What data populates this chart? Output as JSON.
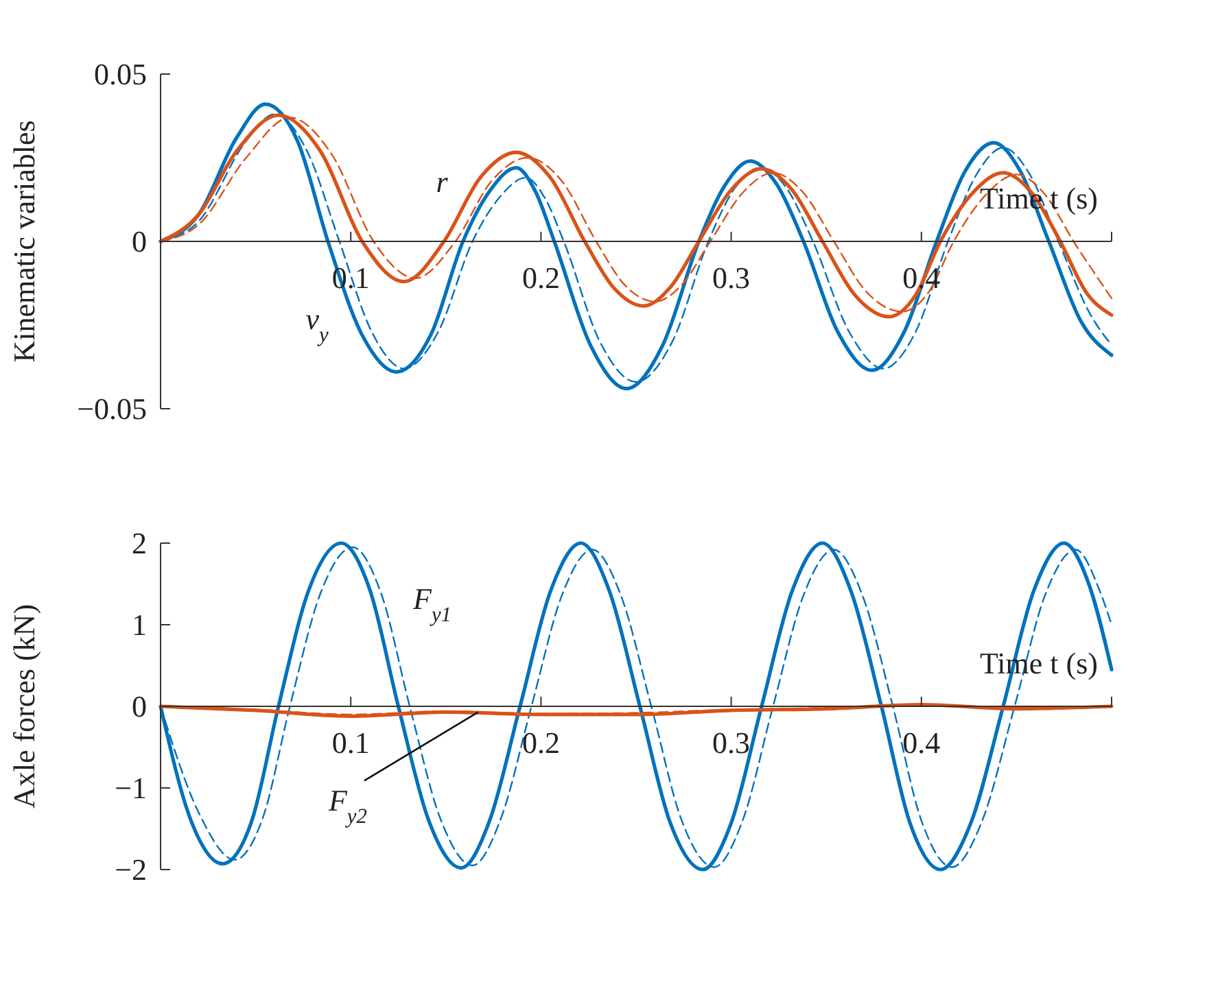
{
  "chart_data": [
    {
      "type": "line",
      "xlabel": "Time t (s)",
      "ylabel": "Kinematic variables",
      "xlim": [
        0,
        0.5
      ],
      "ylim": [
        -0.05,
        0.05
      ],
      "xticks": [
        0.1,
        0.2,
        0.3,
        0.4,
        {
          "value": 0.5,
          "label": null
        }
      ],
      "yticks": [
        {
          "value": -0.05,
          "label": "−0.05"
        },
        0,
        0.05
      ],
      "series": [
        {
          "color": "#0072bd",
          "line_style": "solid",
          "x": [
            0,
            0.02,
            0.04,
            0.055,
            0.072,
            0.088,
            0.106,
            0.124,
            0.142,
            0.159,
            0.173,
            0.187,
            0.197,
            0.207,
            0.226,
            0.245,
            0.264,
            0.283,
            0.297,
            0.31,
            0.324,
            0.338,
            0.356,
            0.374,
            0.391,
            0.408,
            0.423,
            0.438,
            0.452,
            0.467,
            0.484,
            0.5
          ],
          "values": [
            0,
            0.008,
            0.031,
            0.041,
            0.03,
            0,
            -0.028,
            -0.039,
            -0.028,
            0,
            0.015,
            0.022,
            0.015,
            0,
            -0.031,
            -0.044,
            -0.031,
            0,
            0.017,
            0.024,
            0.017,
            0,
            -0.027,
            -0.0385,
            -0.027,
            0,
            0.021,
            0.0295,
            0.021,
            0,
            -0.024,
            -0.034
          ]
        },
        {
          "color": "#0072bd",
          "line_style": "dashed",
          "x": [
            0,
            0.02,
            0.045,
            0.06,
            0.077,
            0.094,
            0.111,
            0.128,
            0.146,
            0.164,
            0.178,
            0.192,
            0.202,
            0.212,
            0.231,
            0.25,
            0.269,
            0.288,
            0.302,
            0.315,
            0.329,
            0.343,
            0.362,
            0.38,
            0.397,
            0.414,
            0.429,
            0.443,
            0.457,
            0.472,
            0.489,
            0.5
          ],
          "values": [
            0,
            0.006,
            0.03,
            0.038,
            0.027,
            0,
            -0.027,
            -0.038,
            -0.027,
            0,
            0.013,
            0.019,
            0.013,
            0,
            -0.03,
            -0.042,
            -0.03,
            0,
            0.016,
            0.022,
            0.016,
            0,
            -0.027,
            -0.038,
            -0.027,
            0,
            0.02,
            0.028,
            0.02,
            0,
            -0.022,
            -0.031
          ]
        },
        {
          "color": "#d95319",
          "line_style": "solid",
          "x": [
            0,
            0.02,
            0.04,
            0.062,
            0.084,
            0.106,
            0.128,
            0.149,
            0.168,
            0.187,
            0.205,
            0.223,
            0.238,
            0.254,
            0.268,
            0.283,
            0.3,
            0.316,
            0.332,
            0.348,
            0.365,
            0.383,
            0.397,
            0.41,
            0.427,
            0.443,
            0.458,
            0.473,
            0.487,
            0.5
          ],
          "values": [
            0,
            0.008,
            0.027,
            0.0377,
            0.027,
            0,
            -0.012,
            0,
            0.019,
            0.0266,
            0.019,
            0,
            -0.0137,
            -0.0193,
            -0.0137,
            0,
            0.0154,
            0.0217,
            0.0154,
            0,
            -0.016,
            -0.0225,
            -0.016,
            0,
            0.0145,
            0.0205,
            0.0145,
            0,
            -0.0155,
            -0.022
          ]
        },
        {
          "color": "#d95319",
          "line_style": "dashed",
          "x": [
            0,
            0.02,
            0.045,
            0.068,
            0.09,
            0.112,
            0.134,
            0.155,
            0.174,
            0.193,
            0.211,
            0.229,
            0.244,
            0.26,
            0.274,
            0.289,
            0.306,
            0.322,
            0.338,
            0.354,
            0.371,
            0.39,
            0.404,
            0.417,
            0.434,
            0.45,
            0.465,
            0.48,
            0.494,
            0.5
          ],
          "values": [
            0,
            0.005,
            0.025,
            0.037,
            0.026,
            0,
            -0.011,
            0,
            0.018,
            0.025,
            0.018,
            0,
            -0.013,
            -0.018,
            -0.013,
            0,
            0.0145,
            0.0205,
            0.0145,
            0,
            -0.015,
            -0.021,
            -0.015,
            0,
            0.014,
            0.02,
            0.014,
            0,
            -0.012,
            -0.017
          ]
        }
      ],
      "annotations": [
        "r",
        "v$_{y}$"
      ]
    },
    {
      "type": "line",
      "xlabel": "Time t (s)",
      "ylabel": "Axle forces (kN)",
      "xlim": [
        0,
        0.5
      ],
      "ylim": [
        -2,
        2
      ],
      "xticks": [
        0.1,
        0.2,
        0.3,
        0.4,
        {
          "value": 0.5,
          "label": null
        }
      ],
      "yticks": [
        {
          "value": -2,
          "label": "−2"
        },
        {
          "value": -1,
          "label": "−1"
        },
        0,
        1,
        2
      ],
      "series": [
        {
          "color": "#0072bd",
          "line_style": "solid",
          "x": [
            0,
            0.016,
            0.0326,
            0.048,
            0.062,
            0.078,
            0.095,
            0.11,
            0.125,
            0.141,
            0.158,
            0.173,
            0.189,
            0.205,
            0.221,
            0.236,
            0.252,
            0.268,
            0.285,
            0.3,
            0.316,
            0.332,
            0.348,
            0.363,
            0.379,
            0.394,
            0.41,
            0.426,
            0.443,
            0.459,
            0.475,
            0.488,
            0.5
          ],
          "values": [
            0,
            -1.4,
            -1.93,
            -1.4,
            0,
            1.43,
            2,
            1.43,
            0,
            -1.4,
            -1.98,
            -1.4,
            0,
            1.41,
            2,
            1.41,
            0,
            -1.43,
            -2,
            -1.43,
            0,
            1.41,
            2,
            1.41,
            0,
            -1.43,
            -2,
            -1.43,
            0,
            1.41,
            2,
            1.5,
            0.45
          ]
        },
        {
          "color": "#0072bd",
          "line_style": "dashed",
          "x": [
            0,
            0.02,
            0.039,
            0.054,
            0.068,
            0.084,
            0.101,
            0.116,
            0.131,
            0.147,
            0.164,
            0.179,
            0.195,
            0.211,
            0.227,
            0.242,
            0.258,
            0.274,
            0.291,
            0.306,
            0.322,
            0.338,
            0.354,
            0.369,
            0.385,
            0.4,
            0.416,
            0.432,
            0.449,
            0.465,
            0.481,
            0.494,
            0.5
          ],
          "values": [
            0,
            -1.3,
            -1.88,
            -1.35,
            0,
            1.38,
            1.95,
            1.38,
            0,
            -1.37,
            -1.95,
            -1.37,
            0,
            1.36,
            1.92,
            1.36,
            0,
            -1.4,
            -1.97,
            -1.4,
            0,
            1.36,
            1.92,
            1.36,
            0,
            -1.4,
            -1.97,
            -1.4,
            0,
            1.36,
            1.92,
            1.4,
            1
          ]
        },
        {
          "color": "#d95319",
          "line_style": "solid",
          "x": [
            0,
            0.05,
            0.1,
            0.15,
            0.2,
            0.25,
            0.3,
            0.35,
            0.4,
            0.45,
            0.5
          ],
          "values": [
            0,
            -0.05,
            -0.12,
            -0.07,
            -0.1,
            -0.1,
            -0.05,
            -0.03,
            0.02,
            -0.03,
            0
          ]
        },
        {
          "color": "#d95319",
          "line_style": "dashed",
          "x": [
            0,
            0.05,
            0.1,
            0.15,
            0.2,
            0.25,
            0.3,
            0.35,
            0.4,
            0.45,
            0.5
          ],
          "values": [
            0,
            -0.04,
            -0.1,
            -0.06,
            -0.09,
            -0.08,
            -0.04,
            -0.02,
            0.01,
            -0.02,
            0
          ]
        }
      ],
      "annotations": [
        "F$_{y1}$",
        {
          "text": "F$_{y2}$",
          "x": 0.167,
          "y": -0.07
        }
      ]
    }
  ]
}
